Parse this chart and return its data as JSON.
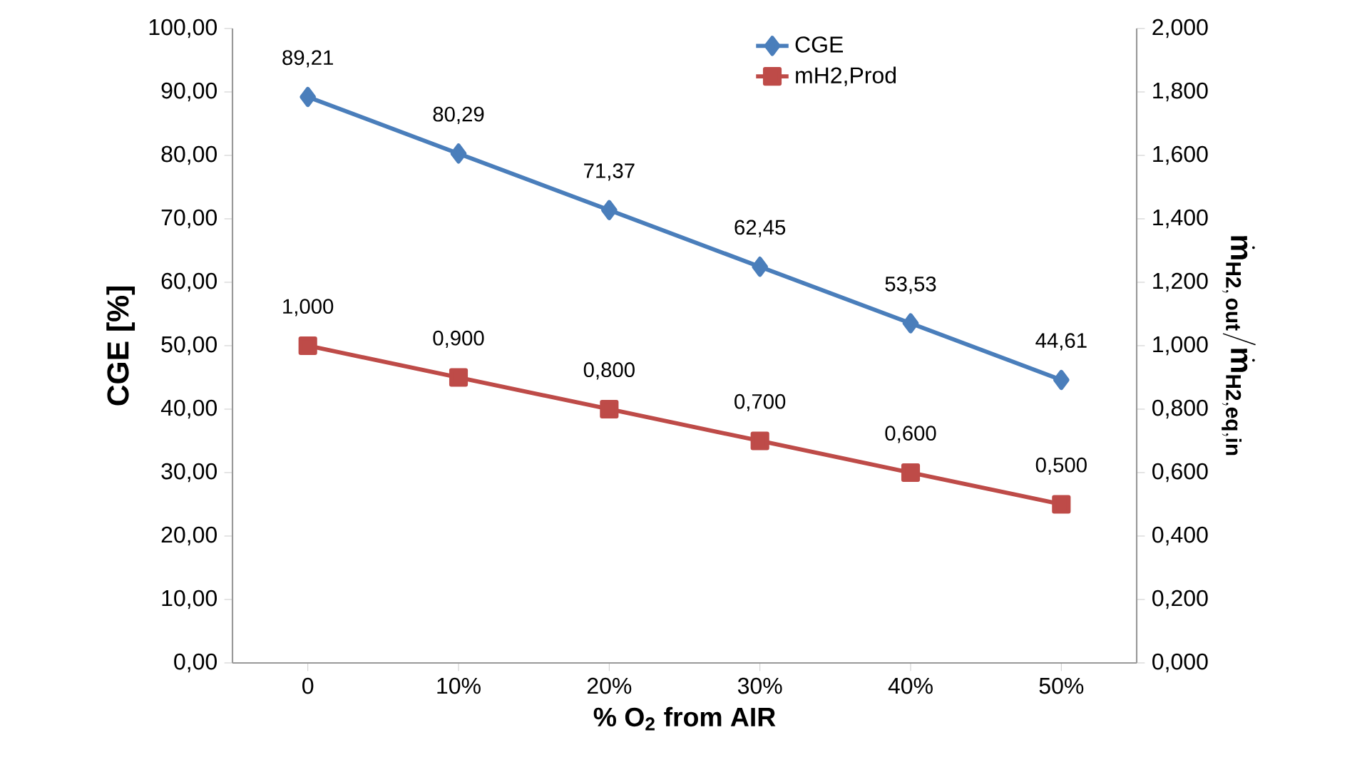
{
  "chart_data": {
    "type": "line",
    "xlabel": "% O$_{2}$ from AIR",
    "ylabel": "CGE [%]",
    "y2label": "\\dot{\\mathbf{m}}_{\\mathbf{H2,\\,out}}/\\dot{\\mathbf{m}}_{\\mathbf{H2,eq,in}}",
    "categories": [
      "0",
      "10%",
      "20%",
      "30%",
      "40%",
      "50%"
    ],
    "series": [
      {
        "name": "CGE",
        "color": "#4a7ebb",
        "marker": "diamond",
        "values": [
          89.21,
          80.29,
          71.37,
          62.45,
          53.53,
          44.61
        ],
        "value_labels": [
          "89,21",
          "80,29",
          "71,37",
          "62,45",
          "53,53",
          "44,61"
        ]
      },
      {
        "name": "mH2,Prod",
        "color": "#be4b48",
        "marker": "square",
        "axis": "y2",
        "values": [
          1.0,
          0.9,
          0.8,
          0.7,
          0.6,
          0.5
        ],
        "value_labels": [
          "1,000",
          "0,900",
          "0,800",
          "0,700",
          "0,600",
          "0,500"
        ]
      }
    ],
    "ylim": [
      0,
      100
    ],
    "yticks": [
      {
        "value": 0,
        "label": "0,00"
      },
      {
        "value": 10,
        "label": "10,00"
      },
      {
        "value": 20,
        "label": "20,00"
      },
      {
        "value": 30,
        "label": "30,00"
      },
      {
        "value": 40,
        "label": "40,00"
      },
      {
        "value": 50,
        "label": "50,00"
      },
      {
        "value": 60,
        "label": "60,00"
      },
      {
        "value": 70,
        "label": "70,00"
      },
      {
        "value": 80,
        "label": "80,00"
      },
      {
        "value": 90,
        "label": "90,00"
      },
      {
        "value": 100,
        "label": "100,00"
      }
    ],
    "y2lim": [
      0,
      2
    ],
    "y2ticks": [
      {
        "value": 0,
        "label": "0,000"
      },
      {
        "value": 0.2,
        "label": "0,200"
      },
      {
        "value": 0.4,
        "label": "0,400"
      },
      {
        "value": 0.6,
        "label": "0,600"
      },
      {
        "value": 0.8,
        "label": "0,800"
      },
      {
        "value": 1.0,
        "label": "1,000"
      },
      {
        "value": 1.2,
        "label": "1,200"
      },
      {
        "value": 1.4,
        "label": "1,400"
      },
      {
        "value": 1.6,
        "label": "1,600"
      },
      {
        "value": 1.8,
        "label": "1,800"
      },
      {
        "value": 2.0,
        "label": "2,000"
      }
    ],
    "legend": "top right",
    "grid": false,
    "line_style": "solid"
  }
}
